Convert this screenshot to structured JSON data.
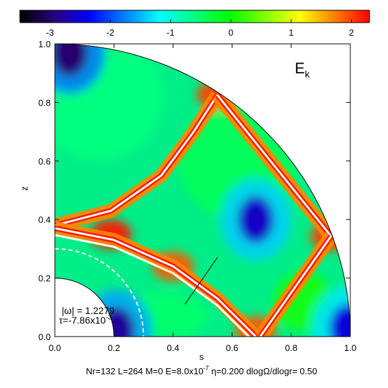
{
  "chart_data": {
    "type": "heatmap",
    "geometry": "meridional quarter-annulus",
    "xlabel": "s",
    "ylabel": "z",
    "xlim": [
      0.0,
      1.0
    ],
    "ylim": [
      0.0,
      1.0
    ],
    "x_ticks": [
      "0.0",
      "0.2",
      "0.4",
      "0.6",
      "0.8",
      "1.0"
    ],
    "y_ticks": [
      "0.0",
      "0.2",
      "0.4",
      "0.6",
      "0.8",
      "1.0"
    ],
    "x_tick_values": [
      0.0,
      0.2,
      0.4,
      0.6,
      0.8,
      1.0
    ],
    "y_tick_values": [
      0.0,
      0.2,
      0.4,
      0.6,
      0.8,
      1.0
    ],
    "inner_radius": 0.2,
    "outer_radius": 1.0,
    "colorbar": {
      "range": [
        -3.5,
        2.3
      ],
      "ticks": [
        "-3",
        "-2",
        "-1",
        "0",
        "1",
        "2"
      ],
      "tick_values": [
        -3,
        -2,
        -1,
        0,
        1,
        2
      ],
      "colormap": [
        "#000000",
        "#2b0080",
        "#0000ff",
        "#0080ff",
        "#00ffff",
        "#00ff80",
        "#00ff00",
        "#80ff00",
        "#ffff00",
        "#ff8000",
        "#ff0000"
      ]
    },
    "panel_label": "E",
    "panel_label_sub": "k",
    "annotations": {
      "omega_prefix": "|ω| = ",
      "omega_value": "1.2279",
      "tau_prefix": "τ=-7.86x10",
      "tau_exp": "-3"
    },
    "caption": {
      "part1": "Nr=132 L=264 M=0 E=8.0x10",
      "exp": "-7",
      "part2": " η=0.200 dlogΩ/dlogr= 0.50"
    },
    "characteristics": [
      {
        "name": "",
        "points": [
          [
            0.0,
            0.38
          ],
          [
            0.19,
            0.43
          ],
          [
            0.36,
            0.55
          ],
          [
            0.47,
            0.7
          ],
          [
            0.55,
            0.825
          ]
        ]
      },
      {
        "name": "",
        "points": [
          [
            0.0,
            0.37
          ],
          [
            0.2,
            0.33
          ],
          [
            0.4,
            0.24
          ],
          [
            0.55,
            0.13
          ],
          [
            0.68,
            0.0
          ]
        ]
      },
      {
        "name": "",
        "points": [
          [
            0.55,
            0.825
          ],
          [
            0.935,
            0.343
          ]
        ]
      },
      {
        "name": "",
        "points": [
          [
            0.935,
            0.343
          ],
          [
            0.695,
            0.0
          ]
        ]
      }
    ],
    "dashed_arc": {
      "radius": 0.3
    },
    "cross_section_segment": [
      [
        0.44,
        0.11
      ],
      [
        0.55,
        0.27
      ]
    ],
    "extrema": [
      {
        "s": 0.68,
        "z": 0.4,
        "value": -2.6
      },
      {
        "s": 0.05,
        "z": 0.97,
        "value": -3.0
      },
      {
        "s": 0.21,
        "z": 0.02,
        "value": -2.8
      },
      {
        "s": 0.99,
        "z": 0.03,
        "value": -2.5
      },
      {
        "s": 0.935,
        "z": 0.343,
        "value": 2.0
      },
      {
        "s": 0.55,
        "z": 0.825,
        "value": 2.0
      },
      {
        "s": 0.19,
        "z": 0.35,
        "value": 2.2
      },
      {
        "s": 0.4,
        "z": 0.24,
        "value": 1.9
      },
      {
        "s": 0.68,
        "z": 0.02,
        "value": 1.9
      }
    ]
  }
}
